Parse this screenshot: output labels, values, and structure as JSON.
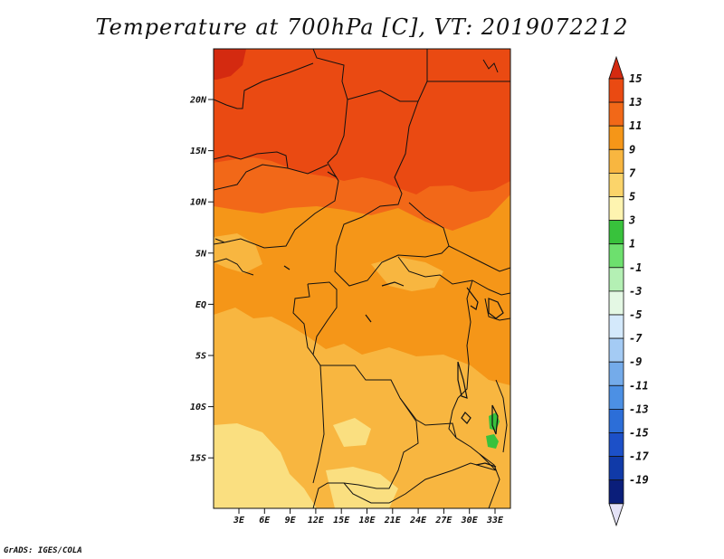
{
  "title": "Temperature at 700hPa [C], VT: 2019072212",
  "footer": "GrADS: IGES/COLA",
  "map": {
    "lat_labels": [
      "20N",
      "15N",
      "10N",
      "5N",
      "EQ",
      "5S",
      "10S",
      "15S"
    ],
    "lon_labels": [
      "3E",
      "6E",
      "9E",
      "12E",
      "15E",
      "18E",
      "21E",
      "24E",
      "27E",
      "30E",
      "33E"
    ],
    "field_colors": {
      "c15": "#d42a10",
      "c13": "#ea4a12",
      "c11": "#f26818",
      "c9": "#f59618",
      "c7": "#f8b640",
      "c5": "#fadf80",
      "c3": "#38c23c",
      "border": "#111111"
    }
  },
  "colorbar": {
    "labels": [
      "15",
      "13",
      "11",
      "9",
      "7",
      "5",
      "3",
      "1",
      "-1",
      "-3",
      "-5",
      "-7",
      "-9",
      "-11",
      "-13",
      "-15",
      "-17",
      "-19"
    ],
    "colors": [
      "#ea4a12",
      "#f26818",
      "#f59618",
      "#f8b640",
      "#fbd46a",
      "#fef4b0",
      "#38c23c",
      "#6de06e",
      "#b4f0b4",
      "#e4f8e4",
      "#d4e9fb",
      "#a4cbf4",
      "#74abea",
      "#4c90e4",
      "#2c6ed8",
      "#1c50c8",
      "#103aa8",
      "#0a1e7a"
    ],
    "top_arrow_color": "#d42a10",
    "bottom_arrow_color": "#e4e2f6"
  }
}
